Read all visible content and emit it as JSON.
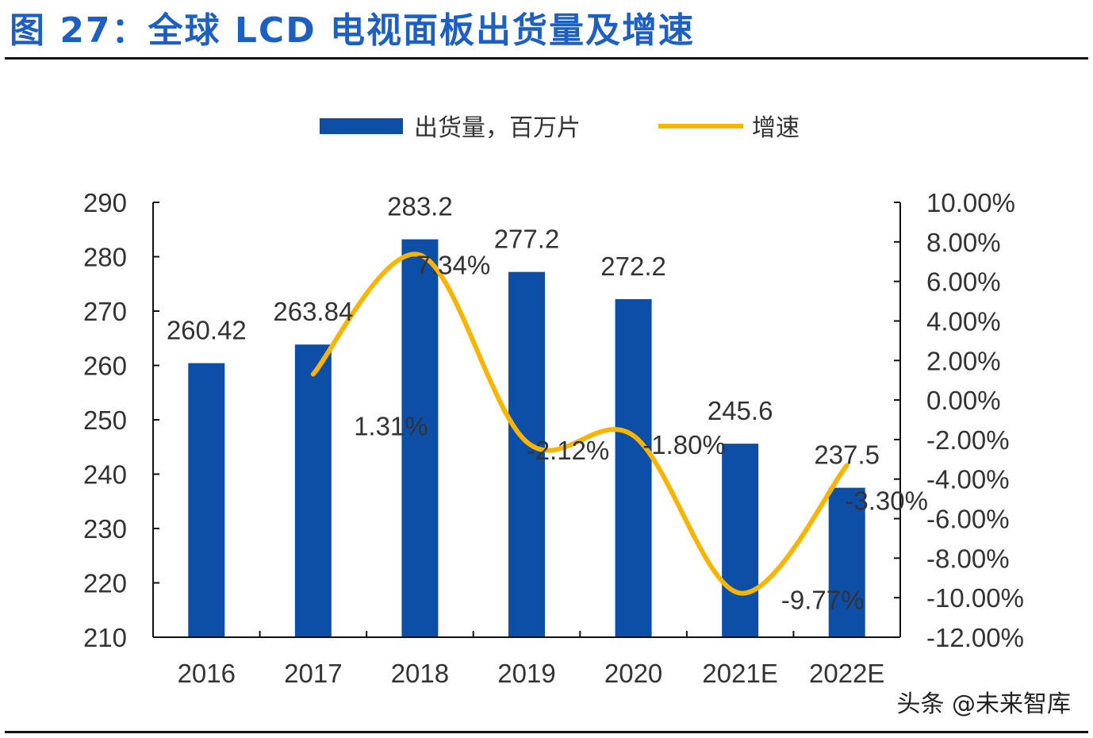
{
  "title": "图 27：全球 LCD 电视面板出货量及增速",
  "watermark": "头条 @未来智库",
  "chart_data": {
    "type": "bar+line",
    "categories": [
      "2016",
      "2017",
      "2018",
      "2019",
      "2020",
      "2021E",
      "2022E"
    ],
    "series": [
      {
        "name": "出货量，百万片",
        "type": "bar",
        "axis": "left",
        "color": "#0d4ea6",
        "values": [
          260.42,
          263.84,
          283.2,
          277.2,
          272.2,
          245.6,
          237.5
        ],
        "labels": [
          "260.42",
          "263.84",
          "283.2",
          "277.2",
          "272.2",
          "245.6",
          "237.5"
        ]
      },
      {
        "name": "增速",
        "type": "line",
        "axis": "right",
        "color": "#f7b500",
        "smooth": true,
        "values": [
          null,
          1.31,
          7.34,
          -2.12,
          -1.8,
          -9.77,
          -3.3
        ],
        "labels": [
          "",
          "1.31%",
          "7.34%",
          "-2.12%",
          "-1.80%",
          "-9.77%",
          "-3.30%"
        ]
      }
    ],
    "y_left": {
      "min": 210,
      "max": 290,
      "step": 10,
      "ticks": [
        "210",
        "220",
        "230",
        "240",
        "250",
        "260",
        "270",
        "280",
        "290"
      ]
    },
    "y_right": {
      "min": -12,
      "max": 10,
      "step": 2,
      "ticks": [
        "-12.00%",
        "-10.00%",
        "-8.00%",
        "-6.00%",
        "-4.00%",
        "-2.00%",
        "0.00%",
        "2.00%",
        "4.00%",
        "6.00%",
        "8.00%",
        "10.00%"
      ]
    },
    "legend": "top",
    "grid": false
  }
}
